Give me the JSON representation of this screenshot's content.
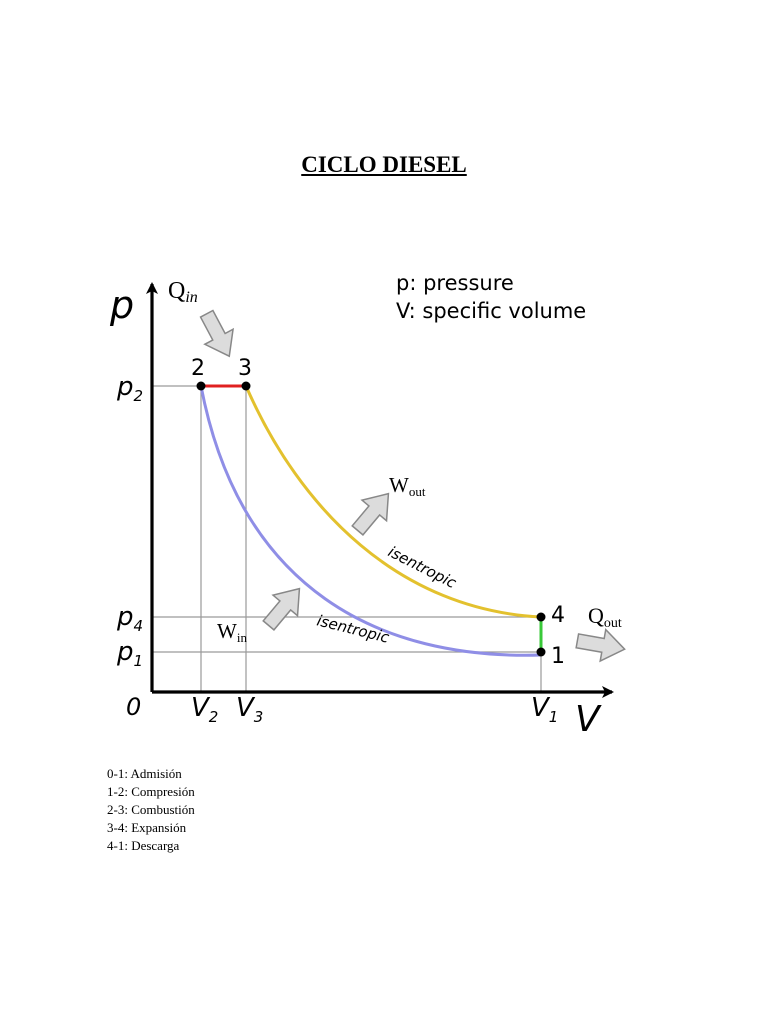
{
  "title": "CICLO DIESEL",
  "chart_data": {
    "type": "line",
    "title": "CICLO DIESEL",
    "xlabel": "V",
    "ylabel": "p",
    "origin_label": "0",
    "info": [
      "p: pressure",
      "V: specific volume"
    ],
    "x_ticks": [
      {
        "main": "V",
        "sub": "2"
      },
      {
        "main": "V",
        "sub": "3"
      },
      {
        "main": "V",
        "sub": "1"
      }
    ],
    "y_ticks": [
      {
        "main": "p",
        "sub": "2"
      },
      {
        "main": "p",
        "sub": "4"
      },
      {
        "main": "p",
        "sub": "1"
      }
    ],
    "points": [
      {
        "label": "1",
        "V": "V1",
        "p": "p1"
      },
      {
        "label": "2",
        "V": "V2",
        "p": "p2"
      },
      {
        "label": "3",
        "V": "V3",
        "p": "p2"
      },
      {
        "label": "4",
        "V": "V1",
        "p": "p4"
      }
    ],
    "processes": [
      {
        "from": "1",
        "to": "2",
        "label": "isentropic",
        "color": "#8f8ee6"
      },
      {
        "from": "2",
        "to": "3",
        "label": "",
        "color": "#e02020"
      },
      {
        "from": "3",
        "to": "4",
        "label": "isentropic",
        "color": "#e3c12e"
      },
      {
        "from": "4",
        "to": "1",
        "label": "",
        "color": "#39c939"
      }
    ],
    "annotations": {
      "q_in": {
        "main": "Q",
        "sub": "in"
      },
      "q_out": {
        "main": "Q",
        "sub": "out"
      },
      "w_in": {
        "main": "W",
        "sub": "in"
      },
      "w_out": {
        "main": "W",
        "sub": "out"
      }
    },
    "colors": {
      "axis": "#000000",
      "grid": "#9a9a9a",
      "arrow_fill": "#dcdcdc",
      "arrow_stroke": "#888888"
    }
  },
  "legend": [
    "0-1: Admisión",
    "1-2: Compresión",
    "2-3: Combustión",
    "3-4: Expansión",
    "4-1: Descarga"
  ]
}
